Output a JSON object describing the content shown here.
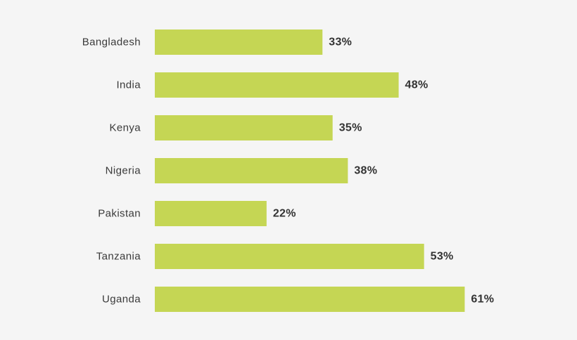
{
  "chart_data": {
    "type": "bar",
    "orientation": "horizontal",
    "categories": [
      "Bangladesh",
      "India",
      "Kenya",
      "Nigeria",
      "Pakistan",
      "Tanzania",
      "Uganda"
    ],
    "values": [
      33,
      48,
      35,
      38,
      22,
      53,
      61
    ],
    "value_labels": [
      "33%",
      "48%",
      "35%",
      "38%",
      "22%",
      "53%",
      "61%"
    ],
    "unit": "%",
    "title": "",
    "xlabel": "",
    "ylabel": "",
    "xlim": [
      0,
      100
    ],
    "grid": false,
    "legend": "none"
  },
  "colors": {
    "background": "#f5f5f5",
    "bar": "#c5d654",
    "category_text": "#3a3a3a",
    "value_text": "#333333"
  }
}
